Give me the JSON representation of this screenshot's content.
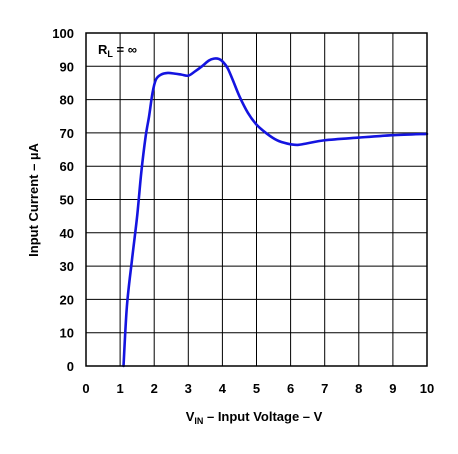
{
  "chart_data": {
    "type": "line",
    "title": "",
    "xlabel": {
      "main": "V",
      "sub": "IN",
      "rest": " – Input Voltage – V"
    },
    "ylabel": "Input Current – µA",
    "xlim": [
      0,
      10
    ],
    "ylim": [
      0,
      100
    ],
    "xticks": [
      0,
      1,
      2,
      3,
      4,
      5,
      6,
      7,
      8,
      9,
      10
    ],
    "yticks": [
      0,
      10,
      20,
      30,
      40,
      50,
      60,
      70,
      80,
      90,
      100
    ],
    "grid": true,
    "annotation": {
      "main": "R",
      "sub": "L",
      "rest": " = ∞"
    },
    "series": [
      {
        "color": "#1414e0",
        "x": [
          1.1,
          1.2,
          1.35,
          1.5,
          1.62,
          1.75,
          1.85,
          1.95,
          2.05,
          2.2,
          2.4,
          2.6,
          2.8,
          3.0,
          3.2,
          3.4,
          3.6,
          3.75,
          3.9,
          4.0,
          4.15,
          4.3,
          4.5,
          4.75,
          5.0,
          5.3,
          5.6,
          5.9,
          6.2,
          6.5,
          7.0,
          8.0,
          9.0,
          10.0
        ],
        "y": [
          0,
          18,
          32,
          45,
          58,
          69,
          75,
          82,
          86,
          87.5,
          88,
          87.8,
          87.5,
          87.2,
          88.5,
          90,
          91.7,
          92.3,
          92.2,
          91.5,
          89.5,
          86,
          81,
          76,
          72.5,
          69.8,
          67.8,
          66.8,
          66.4,
          66.9,
          67.8,
          68.6,
          69.3,
          69.7
        ]
      }
    ]
  }
}
